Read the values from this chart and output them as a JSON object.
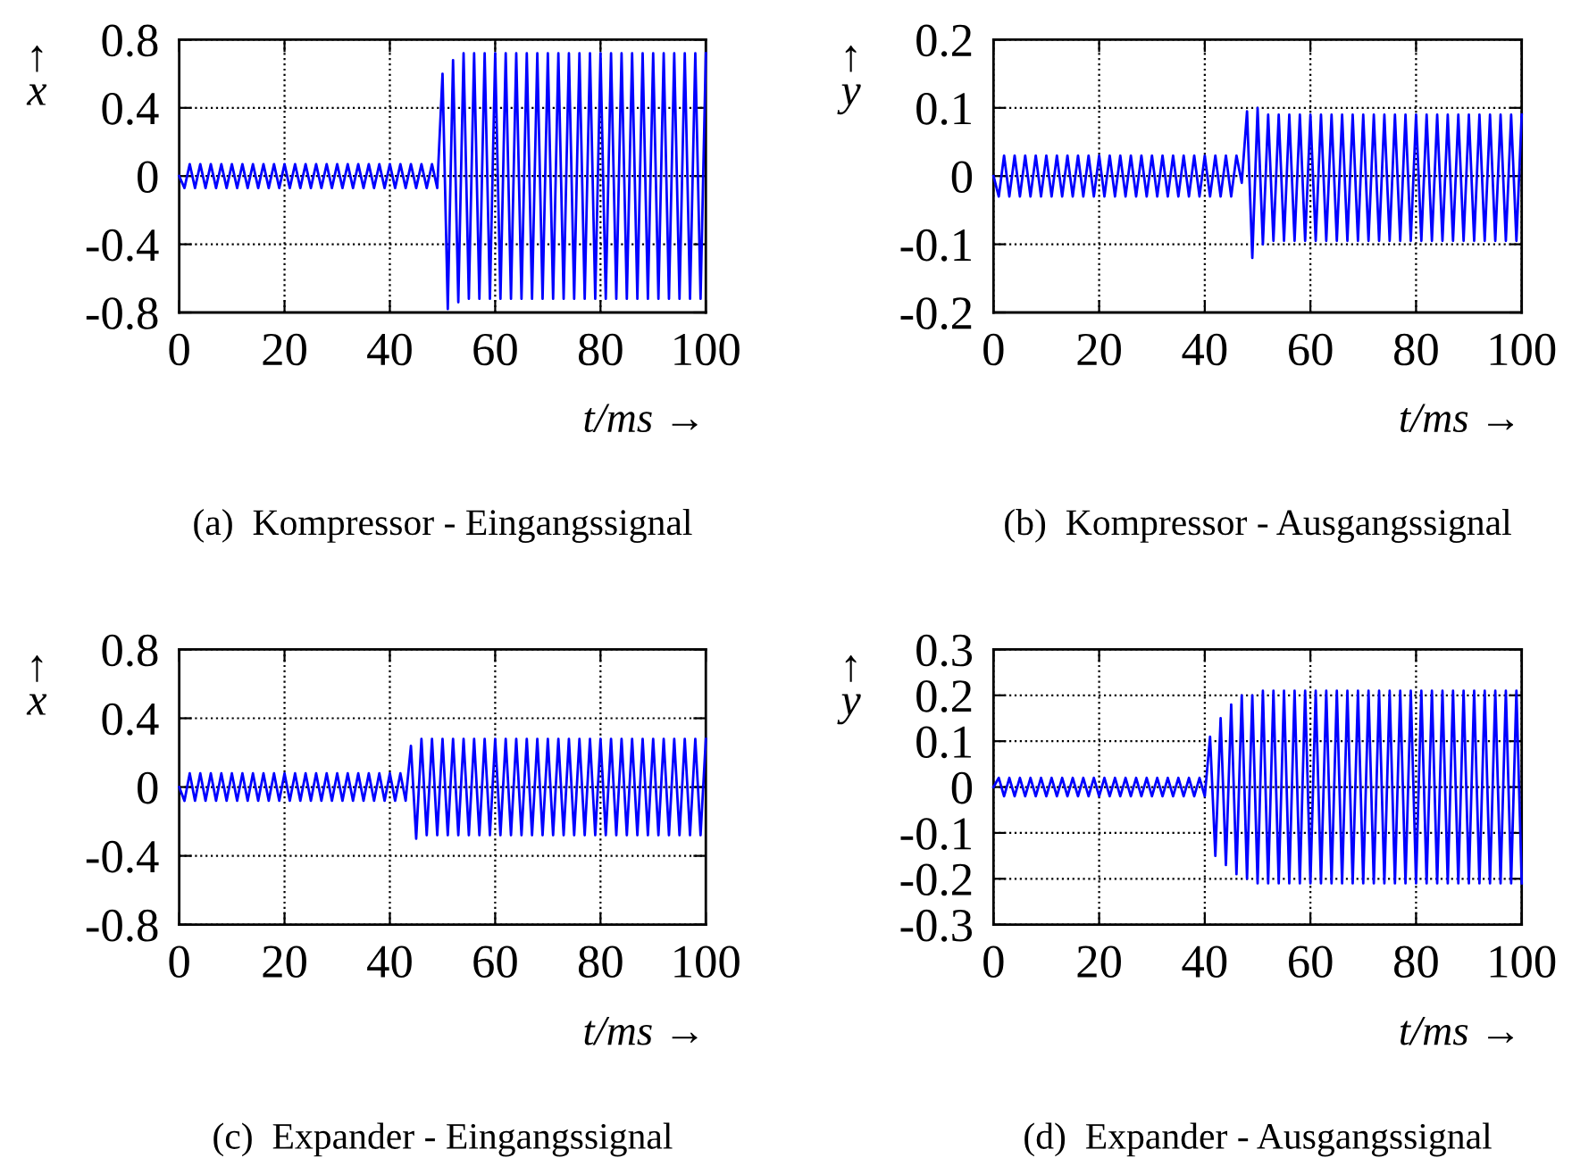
{
  "chart_data": [
    {
      "type": "line",
      "title": "(a)  Kompressor - Eingangssignal",
      "xlabel": "t/ms →",
      "ylabel": "↑\nx",
      "xlim": [
        0,
        100
      ],
      "ylim": [
        -0.8,
        0.8
      ],
      "xticks": [
        0,
        20,
        40,
        60,
        80,
        100
      ],
      "yticks": [
        -0.8,
        -0.4,
        0,
        0.4,
        0.8
      ],
      "grid": true,
      "series": [
        {
          "color": "#0000ff",
          "x": [
            0,
            1,
            2,
            3,
            4,
            5,
            6,
            7,
            8,
            9,
            10,
            11,
            12,
            13,
            14,
            15,
            16,
            17,
            18,
            19,
            20,
            21,
            22,
            23,
            24,
            25,
            26,
            27,
            28,
            29,
            30,
            31,
            32,
            33,
            34,
            35,
            36,
            37,
            38,
            39,
            40,
            41,
            42,
            43,
            44,
            45,
            46,
            47,
            48,
            49,
            50,
            51,
            52,
            53,
            54,
            55,
            56,
            57,
            58,
            59,
            60,
            61,
            62,
            63,
            64,
            65,
            66,
            67,
            68,
            69,
            70,
            71,
            72,
            73,
            74,
            75,
            76,
            77,
            78,
            79,
            80,
            81,
            82,
            83,
            84,
            85,
            86,
            87,
            88,
            89,
            90,
            91,
            92,
            93,
            94,
            95,
            96,
            97,
            98,
            99,
            100
          ],
          "values": [
            0,
            -0.07,
            0.07,
            -0.07,
            0.07,
            -0.07,
            0.07,
            -0.07,
            0.07,
            -0.07,
            0.07,
            -0.07,
            0.07,
            -0.07,
            0.07,
            -0.07,
            0.07,
            -0.07,
            0.07,
            -0.07,
            0.07,
            -0.07,
            0.07,
            -0.07,
            0.07,
            -0.07,
            0.07,
            -0.07,
            0.07,
            -0.07,
            0.07,
            -0.07,
            0.07,
            -0.07,
            0.07,
            -0.07,
            0.07,
            -0.07,
            0.07,
            -0.07,
            0.07,
            -0.07,
            0.07,
            -0.07,
            0.07,
            -0.07,
            0.07,
            -0.07,
            0.07,
            -0.07,
            0.6,
            -0.78,
            0.68,
            -0.74,
            0.72,
            -0.72,
            0.72,
            -0.72,
            0.72,
            -0.72,
            0.72,
            -0.72,
            0.72,
            -0.72,
            0.72,
            -0.72,
            0.72,
            -0.72,
            0.72,
            -0.72,
            0.72,
            -0.72,
            0.72,
            -0.72,
            0.72,
            -0.72,
            0.72,
            -0.72,
            0.72,
            -0.72,
            0.72,
            -0.72,
            0.72,
            -0.72,
            0.72,
            -0.72,
            0.72,
            -0.72,
            0.72,
            -0.72,
            0.72,
            -0.72,
            0.72,
            -0.72,
            0.72,
            -0.72,
            0.72,
            -0.72,
            0.72,
            -0.72,
            0.72
          ]
        }
      ]
    },
    {
      "type": "line",
      "title": "(b)  Kompressor - Ausgangssignal",
      "xlabel": "t/ms →",
      "ylabel": "↑\ny",
      "xlim": [
        0,
        100
      ],
      "ylim": [
        -0.2,
        0.2
      ],
      "xticks": [
        0,
        20,
        40,
        60,
        80,
        100
      ],
      "yticks": [
        -0.2,
        -0.1,
        0,
        0.1,
        0.2
      ],
      "grid": true,
      "series": [
        {
          "color": "#0000ff",
          "x": [
            0,
            1,
            2,
            3,
            4,
            5,
            6,
            7,
            8,
            9,
            10,
            11,
            12,
            13,
            14,
            15,
            16,
            17,
            18,
            19,
            20,
            21,
            22,
            23,
            24,
            25,
            26,
            27,
            28,
            29,
            30,
            31,
            32,
            33,
            34,
            35,
            36,
            37,
            38,
            39,
            40,
            41,
            42,
            43,
            44,
            45,
            46,
            47,
            48,
            49,
            50,
            51,
            52,
            53,
            54,
            55,
            56,
            57,
            58,
            59,
            60,
            61,
            62,
            63,
            64,
            65,
            66,
            67,
            68,
            69,
            70,
            71,
            72,
            73,
            74,
            75,
            76,
            77,
            78,
            79,
            80,
            81,
            82,
            83,
            84,
            85,
            86,
            87,
            88,
            89,
            90,
            91,
            92,
            93,
            94,
            95,
            96,
            97,
            98,
            99,
            100
          ],
          "values": [
            0,
            -0.03,
            0.03,
            -0.03,
            0.03,
            -0.03,
            0.03,
            -0.03,
            0.03,
            -0.03,
            0.03,
            -0.03,
            0.03,
            -0.03,
            0.03,
            -0.03,
            0.03,
            -0.03,
            0.03,
            -0.03,
            0.03,
            -0.03,
            0.03,
            -0.03,
            0.03,
            -0.03,
            0.03,
            -0.03,
            0.03,
            -0.03,
            0.03,
            -0.03,
            0.03,
            -0.03,
            0.03,
            -0.03,
            0.03,
            -0.03,
            0.03,
            -0.03,
            0.03,
            -0.03,
            0.03,
            -0.03,
            0.03,
            -0.03,
            0.03,
            -0.01,
            0.095,
            -0.12,
            0.1,
            -0.1,
            0.09,
            -0.095,
            0.09,
            -0.095,
            0.09,
            -0.095,
            0.09,
            -0.095,
            0.09,
            -0.095,
            0.09,
            -0.095,
            0.09,
            -0.095,
            0.09,
            -0.095,
            0.09,
            -0.095,
            0.09,
            -0.095,
            0.09,
            -0.095,
            0.09,
            -0.095,
            0.09,
            -0.095,
            0.09,
            -0.095,
            0.09,
            -0.095,
            0.09,
            -0.095,
            0.09,
            -0.095,
            0.09,
            -0.095,
            0.09,
            -0.095,
            0.09,
            -0.095,
            0.09,
            -0.095,
            0.09,
            -0.095,
            0.09,
            -0.095,
            0.09,
            -0.095,
            0.09
          ]
        }
      ]
    },
    {
      "type": "line",
      "title": "(c)  Expander - Eingangssignal",
      "xlabel": "t/ms →",
      "ylabel": "↑\nx",
      "xlim": [
        0,
        100
      ],
      "ylim": [
        -0.8,
        0.8
      ],
      "xticks": [
        0,
        20,
        40,
        60,
        80,
        100
      ],
      "yticks": [
        -0.8,
        -0.4,
        0,
        0.4,
        0.8
      ],
      "grid": true,
      "series": [
        {
          "color": "#0000ff",
          "x": [
            0,
            1,
            2,
            3,
            4,
            5,
            6,
            7,
            8,
            9,
            10,
            11,
            12,
            13,
            14,
            15,
            16,
            17,
            18,
            19,
            20,
            21,
            22,
            23,
            24,
            25,
            26,
            27,
            28,
            29,
            30,
            31,
            32,
            33,
            34,
            35,
            36,
            37,
            38,
            39,
            40,
            41,
            42,
            43,
            44,
            45,
            46,
            47,
            48,
            49,
            50,
            51,
            52,
            53,
            54,
            55,
            56,
            57,
            58,
            59,
            60,
            61,
            62,
            63,
            64,
            65,
            66,
            67,
            68,
            69,
            70,
            71,
            72,
            73,
            74,
            75,
            76,
            77,
            78,
            79,
            80,
            81,
            82,
            83,
            84,
            85,
            86,
            87,
            88,
            89,
            90,
            91,
            92,
            93,
            94,
            95,
            96,
            97,
            98,
            99,
            100
          ],
          "values": [
            0,
            -0.08,
            0.08,
            -0.08,
            0.08,
            -0.08,
            0.08,
            -0.08,
            0.08,
            -0.08,
            0.08,
            -0.08,
            0.08,
            -0.08,
            0.08,
            -0.08,
            0.08,
            -0.08,
            0.08,
            -0.08,
            0.08,
            -0.08,
            0.08,
            -0.08,
            0.08,
            -0.08,
            0.08,
            -0.08,
            0.08,
            -0.08,
            0.08,
            -0.08,
            0.08,
            -0.08,
            0.08,
            -0.08,
            0.08,
            -0.08,
            0.08,
            -0.08,
            0.08,
            -0.08,
            0.08,
            -0.08,
            0.24,
            -0.3,
            0.28,
            -0.28,
            0.28,
            -0.28,
            0.28,
            -0.28,
            0.28,
            -0.28,
            0.28,
            -0.28,
            0.28,
            -0.28,
            0.28,
            -0.28,
            0.28,
            -0.28,
            0.28,
            -0.28,
            0.28,
            -0.28,
            0.28,
            -0.28,
            0.28,
            -0.28,
            0.28,
            -0.28,
            0.28,
            -0.28,
            0.28,
            -0.28,
            0.28,
            -0.28,
            0.28,
            -0.28,
            0.28,
            -0.28,
            0.28,
            -0.28,
            0.28,
            -0.28,
            0.28,
            -0.28,
            0.28,
            -0.28,
            0.28,
            -0.28,
            0.28,
            -0.28,
            0.28,
            -0.28,
            0.28,
            -0.28,
            0.28,
            -0.28,
            0.28
          ]
        }
      ]
    },
    {
      "type": "line",
      "title": "(d)  Expander - Ausgangssignal",
      "xlabel": "t/ms →",
      "ylabel": "↑\ny",
      "xlim": [
        0,
        100
      ],
      "ylim": [
        -0.3,
        0.3
      ],
      "xticks": [
        0,
        20,
        40,
        60,
        80,
        100
      ],
      "yticks": [
        -0.3,
        -0.2,
        -0.1,
        0,
        0.1,
        0.2,
        0.3
      ],
      "grid": true,
      "series": [
        {
          "color": "#0000ff",
          "x": [
            0,
            1,
            2,
            3,
            4,
            5,
            6,
            7,
            8,
            9,
            10,
            11,
            12,
            13,
            14,
            15,
            16,
            17,
            18,
            19,
            20,
            21,
            22,
            23,
            24,
            25,
            26,
            27,
            28,
            29,
            30,
            31,
            32,
            33,
            34,
            35,
            36,
            37,
            38,
            39,
            40,
            41,
            42,
            43,
            44,
            45,
            46,
            47,
            48,
            49,
            50,
            51,
            52,
            53,
            54,
            55,
            56,
            57,
            58,
            59,
            60,
            61,
            62,
            63,
            64,
            65,
            66,
            67,
            68,
            69,
            70,
            71,
            72,
            73,
            74,
            75,
            76,
            77,
            78,
            79,
            80,
            81,
            82,
            83,
            84,
            85,
            86,
            87,
            88,
            89,
            90,
            91,
            92,
            93,
            94,
            95,
            96,
            97,
            98,
            99,
            100
          ],
          "values": [
            0,
            0.02,
            -0.02,
            0.02,
            -0.02,
            0.02,
            -0.02,
            0.02,
            -0.02,
            0.02,
            -0.02,
            0.02,
            -0.02,
            0.02,
            -0.02,
            0.02,
            -0.02,
            0.02,
            -0.02,
            0.02,
            -0.02,
            0.02,
            -0.02,
            0.02,
            -0.02,
            0.02,
            -0.02,
            0.02,
            -0.02,
            0.02,
            -0.02,
            0.02,
            -0.02,
            0.02,
            -0.02,
            0.02,
            -0.02,
            0.02,
            -0.02,
            0.02,
            -0.02,
            0.11,
            -0.15,
            0.15,
            -0.17,
            0.18,
            -0.19,
            0.2,
            -0.2,
            0.2,
            -0.21,
            0.21,
            -0.21,
            0.21,
            -0.21,
            0.21,
            -0.21,
            0.21,
            -0.21,
            0.21,
            -0.21,
            0.21,
            -0.21,
            0.21,
            -0.21,
            0.21,
            -0.21,
            0.21,
            -0.21,
            0.21,
            -0.21,
            0.21,
            -0.21,
            0.21,
            -0.21,
            0.21,
            -0.21,
            0.21,
            -0.21,
            0.21,
            -0.21,
            0.21,
            -0.21,
            0.21,
            -0.21,
            0.21,
            -0.21,
            0.21,
            -0.21,
            0.21,
            -0.21,
            0.21,
            -0.21,
            0.21,
            -0.21,
            0.21,
            -0.21,
            0.21,
            -0.21,
            0.21,
            -0.21
          ]
        }
      ]
    }
  ]
}
